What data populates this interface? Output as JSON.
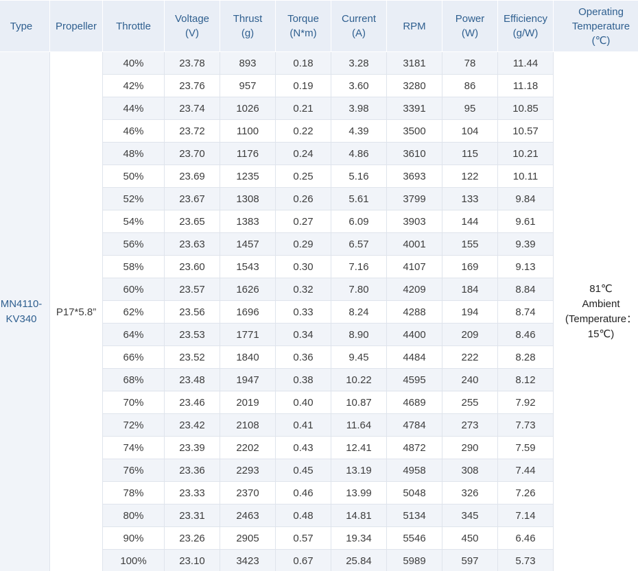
{
  "headers": [
    {
      "key": "type",
      "lines": [
        "Type"
      ]
    },
    {
      "key": "propeller",
      "lines": [
        "Propeller"
      ]
    },
    {
      "key": "throttle",
      "lines": [
        "Throttle"
      ]
    },
    {
      "key": "voltage",
      "lines": [
        "Voltage",
        "(V)"
      ]
    },
    {
      "key": "thrust",
      "lines": [
        "Thrust",
        "(g)"
      ]
    },
    {
      "key": "torque",
      "lines": [
        "Torque",
        "(N*m)"
      ]
    },
    {
      "key": "current",
      "lines": [
        "Current",
        "(A)"
      ]
    },
    {
      "key": "rpm",
      "lines": [
        "RPM"
      ]
    },
    {
      "key": "power",
      "lines": [
        "Power",
        "(W)"
      ]
    },
    {
      "key": "efficiency",
      "lines": [
        "Efficiency",
        "(g/W)"
      ]
    },
    {
      "key": "temperature",
      "lines": [
        "Operating",
        "Temperature",
        "(℃)"
      ]
    }
  ],
  "type_lines": [
    "MN4110-",
    "KV340"
  ],
  "propeller": "P17*5.8”",
  "temperature_lines": [
    "81℃",
    "Ambient",
    "(Temperature：",
    "15℃)"
  ],
  "rows": [
    [
      "40%",
      "23.78",
      "893",
      "0.18",
      "3.28",
      "3181",
      "78",
      "11.44"
    ],
    [
      "42%",
      "23.76",
      "957",
      "0.19",
      "3.60",
      "3280",
      "86",
      "11.18"
    ],
    [
      "44%",
      "23.74",
      "1026",
      "0.21",
      "3.98",
      "3391",
      "95",
      "10.85"
    ],
    [
      "46%",
      "23.72",
      "1100",
      "0.22",
      "4.39",
      "3500",
      "104",
      "10.57"
    ],
    [
      "48%",
      "23.70",
      "1176",
      "0.24",
      "4.86",
      "3610",
      "115",
      "10.21"
    ],
    [
      "50%",
      "23.69",
      "1235",
      "0.25",
      "5.16",
      "3693",
      "122",
      "10.11"
    ],
    [
      "52%",
      "23.67",
      "1308",
      "0.26",
      "5.61",
      "3799",
      "133",
      "9.84"
    ],
    [
      "54%",
      "23.65",
      "1383",
      "0.27",
      "6.09",
      "3903",
      "144",
      "9.61"
    ],
    [
      "56%",
      "23.63",
      "1457",
      "0.29",
      "6.57",
      "4001",
      "155",
      "9.39"
    ],
    [
      "58%",
      "23.60",
      "1543",
      "0.30",
      "7.16",
      "4107",
      "169",
      "9.13"
    ],
    [
      "60%",
      "23.57",
      "1626",
      "0.32",
      "7.80",
      "4209",
      "184",
      "8.84"
    ],
    [
      "62%",
      "23.56",
      "1696",
      "0.33",
      "8.24",
      "4288",
      "194",
      "8.74"
    ],
    [
      "64%",
      "23.53",
      "1771",
      "0.34",
      "8.90",
      "4400",
      "209",
      "8.46"
    ],
    [
      "66%",
      "23.52",
      "1840",
      "0.36",
      "9.45",
      "4484",
      "222",
      "8.28"
    ],
    [
      "68%",
      "23.48",
      "1947",
      "0.38",
      "10.22",
      "4595",
      "240",
      "8.12"
    ],
    [
      "70%",
      "23.46",
      "2019",
      "0.40",
      "10.87",
      "4689",
      "255",
      "7.92"
    ],
    [
      "72%",
      "23.42",
      "2108",
      "0.41",
      "11.64",
      "4784",
      "273",
      "7.73"
    ],
    [
      "74%",
      "23.39",
      "2202",
      "0.43",
      "12.41",
      "4872",
      "290",
      "7.59"
    ],
    [
      "76%",
      "23.36",
      "2293",
      "0.45",
      "13.19",
      "4958",
      "308",
      "7.44"
    ],
    [
      "78%",
      "23.33",
      "2370",
      "0.46",
      "13.99",
      "5048",
      "326",
      "7.26"
    ],
    [
      "80%",
      "23.31",
      "2463",
      "0.48",
      "14.81",
      "5134",
      "345",
      "7.14"
    ],
    [
      "90%",
      "23.26",
      "2905",
      "0.57",
      "19.34",
      "5546",
      "450",
      "6.46"
    ],
    [
      "100%",
      "23.10",
      "3423",
      "0.67",
      "25.84",
      "5989",
      "597",
      "5.73"
    ]
  ],
  "row_cell_names": [
    "throttle-cell",
    "voltage-cell",
    "thrust-cell",
    "torque-cell",
    "current-cell",
    "rpm-cell",
    "power-cell",
    "efficiency-cell"
  ]
}
